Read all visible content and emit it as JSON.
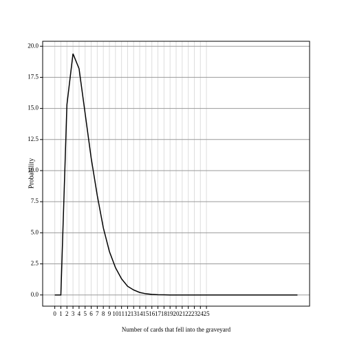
{
  "chart_data": {
    "type": "line",
    "x_label": "Number of cards that fell into the graveyard",
    "y_label": "Probability",
    "x": [
      0,
      1,
      2,
      3,
      4,
      5,
      6,
      7,
      8,
      9,
      10,
      11,
      12,
      13,
      14,
      15,
      16,
      17,
      18,
      19,
      20,
      21,
      22,
      23,
      24,
      25,
      26,
      27,
      28,
      29,
      30,
      31,
      32,
      33,
      34,
      35,
      36,
      37,
      38,
      39,
      40
    ],
    "series": [
      {
        "color": "#000000",
        "values": [
          0,
          0,
          15.3,
          19.4,
          18.2,
          14.6,
          11.0,
          8.0,
          5.4,
          3.5,
          2.2,
          1.3,
          0.7,
          0.4,
          0.2,
          0.1,
          0.05,
          0.02,
          0.01,
          0,
          0,
          0,
          0,
          0,
          0,
          0,
          0,
          0,
          0,
          0,
          0,
          0,
          0,
          0,
          0,
          0,
          0,
          0,
          0,
          0,
          0
        ]
      }
    ],
    "xlim": [
      -2,
      42
    ],
    "ylim": [
      -0.9,
      20.4
    ],
    "xticks": [
      0,
      1,
      2,
      3,
      4,
      5,
      6,
      7,
      8,
      9,
      10,
      11,
      12,
      13,
      14,
      15,
      16,
      17,
      18,
      19,
      20,
      21,
      22,
      23,
      24,
      25
    ],
    "yticks": [
      {
        "value": 0,
        "label": "0.0"
      },
      2.5,
      {
        "value": 5,
        "label": "5.0"
      },
      7.5,
      {
        "value": 10,
        "label": "10.0"
      },
      12.5,
      {
        "value": 15,
        "label": "15.0"
      },
      17.5,
      {
        "value": 20,
        "label": "20.0"
      }
    ],
    "grid": true
  }
}
